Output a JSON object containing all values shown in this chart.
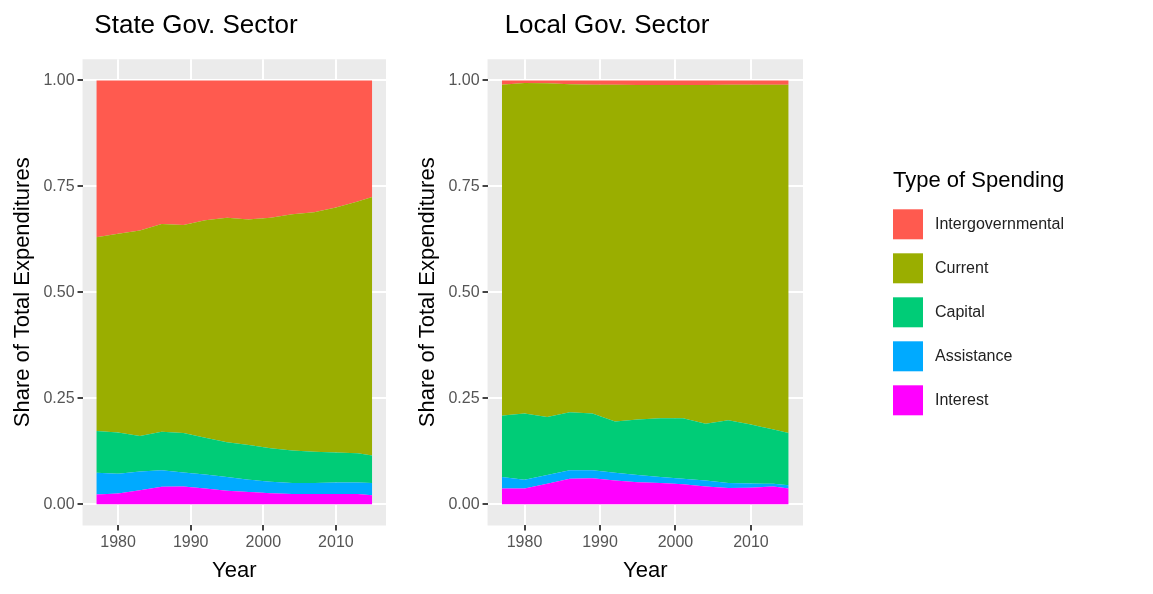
{
  "chart_data": [
    {
      "type": "area",
      "title": "State Gov. Sector",
      "xlabel": "Year",
      "ylabel": "Share of Total Expenditures",
      "stacked": true,
      "grid": true,
      "legend": false,
      "x": [
        1977,
        1980,
        1983,
        1986,
        1989,
        1992,
        1995,
        1998,
        2001,
        2004,
        2007,
        2010,
        2013,
        2015
      ],
      "xlim": [
        1975.1,
        2016.9
      ],
      "xticks": [
        1980,
        1990,
        2000,
        2010
      ],
      "ylim": [
        -0.05,
        1.05
      ],
      "yticks": [
        {
          "value": 0,
          "label": "0.00"
        },
        {
          "value": 0.25,
          "label": "0.25"
        },
        {
          "value": 0.5,
          "label": "0.50"
        },
        {
          "value": 0.75,
          "label": "0.75"
        },
        {
          "value": 1,
          "label": "1.00"
        }
      ],
      "series": [
        {
          "color": "#ff00ff",
          "values": [
            0.023,
            0.025,
            0.033,
            0.041,
            0.042,
            0.037,
            0.032,
            0.029,
            0.026,
            0.024,
            0.024,
            0.024,
            0.024,
            0.021
          ]
        },
        {
          "color": "#00aaff",
          "values": [
            0.051,
            0.047,
            0.044,
            0.039,
            0.033,
            0.033,
            0.032,
            0.029,
            0.027,
            0.026,
            0.026,
            0.027,
            0.027,
            0.029
          ]
        },
        {
          "color": "#00cc77",
          "values": [
            0.099,
            0.097,
            0.084,
            0.091,
            0.093,
            0.087,
            0.082,
            0.082,
            0.079,
            0.077,
            0.074,
            0.071,
            0.069,
            0.065
          ]
        },
        {
          "color": "#9aae00",
          "values": [
            0.457,
            0.469,
            0.485,
            0.49,
            0.491,
            0.513,
            0.53,
            0.532,
            0.544,
            0.557,
            0.565,
            0.578,
            0.594,
            0.61
          ]
        },
        {
          "color": "#ff5a4f",
          "values": [
            0.37,
            0.362,
            0.354,
            0.339,
            0.341,
            0.33,
            0.324,
            0.328,
            0.324,
            0.316,
            0.311,
            0.3,
            0.286,
            0.275
          ]
        }
      ]
    },
    {
      "type": "area",
      "title": "Local Gov. Sector",
      "xlabel": "Year",
      "ylabel": "Share of Total Expenditures",
      "legend_title": "Type of Spending",
      "stacked": true,
      "grid": true,
      "legend": "right",
      "x": [
        1977,
        1980,
        1983,
        1986,
        1989,
        1992,
        1995,
        1998,
        2001,
        2004,
        2007,
        2010,
        2013,
        2015
      ],
      "xlim": [
        1975.1,
        2016.9
      ],
      "xticks": [
        1980,
        1990,
        2000,
        2010
      ],
      "ylim": [
        -0.05,
        1.05
      ],
      "yticks": [
        {
          "value": 0,
          "label": "0.00"
        },
        {
          "value": 0.25,
          "label": "0.25"
        },
        {
          "value": 0.5,
          "label": "0.50"
        },
        {
          "value": 0.75,
          "label": "0.75"
        },
        {
          "value": 1,
          "label": "1.00"
        }
      ],
      "series": [
        {
          "name": "Interest",
          "color": "#ff00ff",
          "values": [
            0.037,
            0.037,
            0.048,
            0.06,
            0.061,
            0.056,
            0.052,
            0.05,
            0.047,
            0.042,
            0.038,
            0.039,
            0.042,
            0.037
          ]
        },
        {
          "name": "Assistance",
          "color": "#00aaff",
          "values": [
            0.027,
            0.021,
            0.021,
            0.02,
            0.019,
            0.018,
            0.017,
            0.014,
            0.013,
            0.014,
            0.012,
            0.01,
            0.006,
            0.008
          ]
        },
        {
          "name": "Capital",
          "color": "#00cc77",
          "values": [
            0.145,
            0.156,
            0.137,
            0.137,
            0.134,
            0.121,
            0.131,
            0.139,
            0.143,
            0.134,
            0.148,
            0.139,
            0.128,
            0.123
          ]
        },
        {
          "name": "Current",
          "color": "#9aae00",
          "values": [
            0.781,
            0.78,
            0.787,
            0.774,
            0.776,
            0.795,
            0.789,
            0.786,
            0.786,
            0.799,
            0.792,
            0.802,
            0.814,
            0.822
          ]
        },
        {
          "name": "Intergovernmental",
          "color": "#ff5a4f",
          "values": [
            0.01,
            0.006,
            0.007,
            0.009,
            0.01,
            0.01,
            0.011,
            0.011,
            0.011,
            0.011,
            0.01,
            0.01,
            0.01,
            0.01
          ]
        }
      ]
    }
  ]
}
